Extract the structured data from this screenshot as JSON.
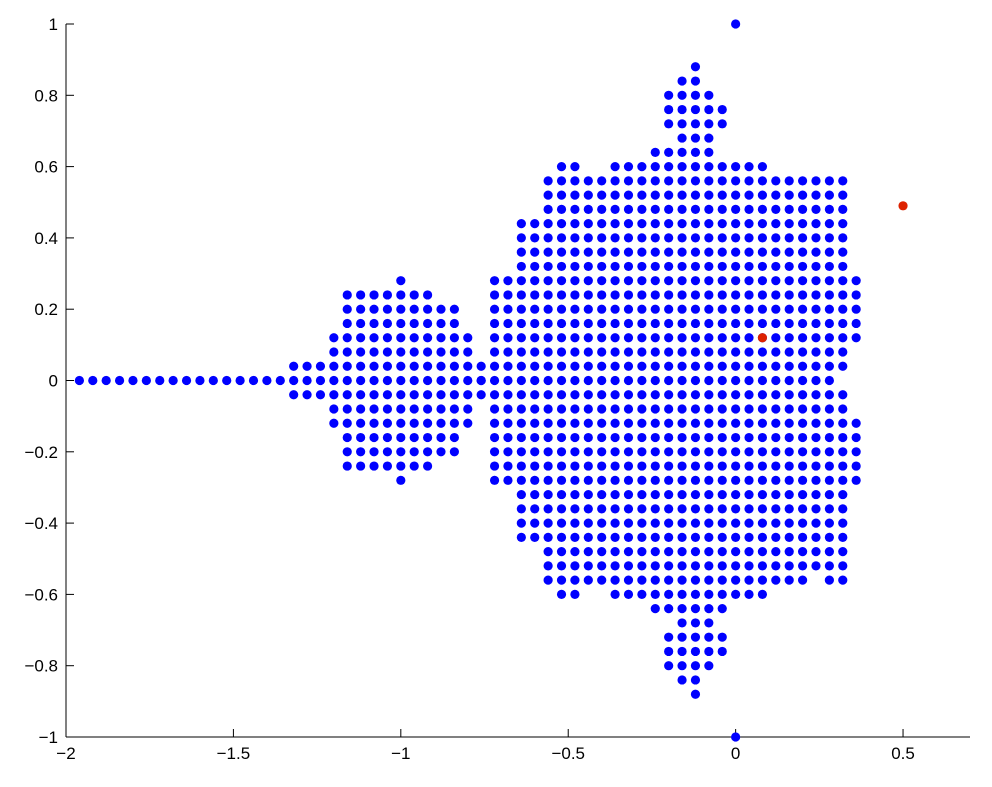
{
  "chart_data": {
    "type": "scatter",
    "title": "",
    "xlabel": "",
    "ylabel": "",
    "xlim": [
      -2,
      0.7
    ],
    "ylim": [
      -1,
      1
    ],
    "grid": false,
    "legend": "none",
    "x_ticks": [
      -2,
      -1.5,
      -1,
      -0.5,
      0,
      0.5
    ],
    "x_tick_labels": [
      "−2",
      "−1.5",
      "−1",
      "−0.5",
      "0",
      "0.5"
    ],
    "y_ticks": [
      -1,
      -0.8,
      -0.6,
      -0.4,
      -0.2,
      0,
      0.2,
      0.4,
      0.6,
      0.8,
      1
    ],
    "y_tick_labels": [
      "−1",
      "−0.8",
      "−0.6",
      "−0.4",
      "−0.2",
      "0",
      "0.2",
      "0.4",
      "0.6",
      "0.8",
      "1"
    ],
    "series": [
      {
        "color": "#0000ff",
        "grid_step": 0.04,
        "rows": [
          {
            "y": 0.88,
            "runs": [
              [
                -0.12,
                -0.12
              ]
            ]
          },
          {
            "y": 0.84,
            "runs": [
              [
                -0.16,
                -0.12
              ]
            ]
          },
          {
            "y": 0.8,
            "runs": [
              [
                -0.2,
                -0.08
              ]
            ]
          },
          {
            "y": 0.76,
            "runs": [
              [
                -0.2,
                -0.04
              ]
            ]
          },
          {
            "y": 0.72,
            "runs": [
              [
                -0.2,
                -0.04
              ]
            ]
          },
          {
            "y": 0.68,
            "runs": [
              [
                -0.16,
                -0.08
              ]
            ]
          },
          {
            "y": 0.64,
            "runs": [
              [
                -0.24,
                -0.08
              ]
            ]
          },
          {
            "y": 0.6,
            "runs": [
              [
                -0.52,
                -0.48
              ],
              [
                -0.36,
                0.08
              ]
            ]
          },
          {
            "y": 0.56,
            "runs": [
              [
                -0.56,
                0.24
              ],
              [
                0.28,
                0.32
              ]
            ]
          },
          {
            "y": 0.52,
            "runs": [
              [
                -0.56,
                0.32
              ]
            ]
          },
          {
            "y": 0.48,
            "runs": [
              [
                -0.56,
                0.32
              ]
            ]
          },
          {
            "y": 0.44,
            "runs": [
              [
                -0.64,
                0.32
              ]
            ]
          },
          {
            "y": 0.4,
            "runs": [
              [
                -0.64,
                0.32
              ]
            ]
          },
          {
            "y": 0.36,
            "runs": [
              [
                -0.64,
                0.32
              ]
            ]
          },
          {
            "y": 0.32,
            "runs": [
              [
                -0.64,
                0.32
              ]
            ]
          },
          {
            "y": 0.28,
            "runs": [
              [
                -1.0,
                -1.0
              ],
              [
                -0.72,
                0.36
              ]
            ]
          },
          {
            "y": 0.24,
            "runs": [
              [
                -1.16,
                -0.92
              ],
              [
                -0.72,
                0.36
              ]
            ]
          },
          {
            "y": 0.2,
            "runs": [
              [
                -1.16,
                -0.84
              ],
              [
                -0.72,
                0.36
              ]
            ]
          },
          {
            "y": 0.16,
            "runs": [
              [
                -1.16,
                -0.84
              ],
              [
                -0.72,
                0.36
              ]
            ]
          },
          {
            "y": 0.12,
            "runs": [
              [
                -1.2,
                -0.8
              ],
              [
                -0.72,
                0.36
              ]
            ]
          },
          {
            "y": 0.08,
            "runs": [
              [
                -1.2,
                -0.8
              ],
              [
                -0.72,
                0.32
              ]
            ]
          },
          {
            "y": 0.04,
            "runs": [
              [
                -1.32,
                -0.76
              ],
              [
                -0.72,
                0.32
              ]
            ]
          },
          {
            "y": 0.0,
            "runs": [
              [
                -1.96,
                -0.76
              ],
              [
                -0.76,
                0.28
              ]
            ]
          },
          {
            "y": -0.04,
            "runs": [
              [
                -1.32,
                -0.76
              ],
              [
                -0.72,
                0.32
              ]
            ]
          },
          {
            "y": -0.08,
            "runs": [
              [
                -1.2,
                -0.8
              ],
              [
                -0.72,
                0.32
              ]
            ]
          },
          {
            "y": -0.12,
            "runs": [
              [
                -1.2,
                -0.8
              ],
              [
                -0.72,
                0.36
              ]
            ]
          },
          {
            "y": -0.16,
            "runs": [
              [
                -1.16,
                -0.84
              ],
              [
                -0.72,
                0.36
              ]
            ]
          },
          {
            "y": -0.2,
            "runs": [
              [
                -1.16,
                -0.84
              ],
              [
                -0.72,
                0.36
              ]
            ]
          },
          {
            "y": -0.24,
            "runs": [
              [
                -1.16,
                -0.92
              ],
              [
                -0.72,
                0.36
              ]
            ]
          },
          {
            "y": -0.28,
            "runs": [
              [
                -1.0,
                -1.0
              ],
              [
                -0.72,
                0.36
              ]
            ]
          },
          {
            "y": -0.32,
            "runs": [
              [
                -0.64,
                0.32
              ]
            ]
          },
          {
            "y": -0.36,
            "runs": [
              [
                -0.64,
                0.32
              ]
            ]
          },
          {
            "y": -0.4,
            "runs": [
              [
                -0.64,
                0.32
              ]
            ]
          },
          {
            "y": -0.44,
            "runs": [
              [
                -0.64,
                0.32
              ]
            ]
          },
          {
            "y": -0.48,
            "runs": [
              [
                -0.56,
                0.32
              ]
            ]
          },
          {
            "y": -0.52,
            "runs": [
              [
                -0.56,
                0.24
              ],
              [
                0.28,
                0.32
              ]
            ]
          },
          {
            "y": -0.56,
            "runs": [
              [
                -0.56,
                0.2
              ],
              [
                0.28,
                0.32
              ]
            ]
          },
          {
            "y": -0.6,
            "runs": [
              [
                -0.52,
                -0.48
              ],
              [
                -0.36,
                0.08
              ]
            ]
          },
          {
            "y": -0.64,
            "runs": [
              [
                -0.24,
                -0.04
              ]
            ]
          },
          {
            "y": -0.68,
            "runs": [
              [
                -0.16,
                -0.08
              ]
            ]
          },
          {
            "y": -0.72,
            "runs": [
              [
                -0.2,
                -0.04
              ]
            ]
          },
          {
            "y": -0.76,
            "runs": [
              [
                -0.2,
                -0.04
              ]
            ]
          },
          {
            "y": -0.8,
            "runs": [
              [
                -0.2,
                -0.08
              ]
            ]
          },
          {
            "y": -0.84,
            "runs": [
              [
                -0.16,
                -0.12
              ]
            ]
          },
          {
            "y": -0.88,
            "runs": [
              [
                -0.12,
                -0.12
              ]
            ]
          }
        ],
        "extra_points": [
          [
            0.0,
            1.0
          ],
          [
            0.0,
            -1.0
          ]
        ]
      },
      {
        "color": "#dd2200",
        "points": [
          [
            0.08,
            0.12
          ],
          [
            0.5,
            0.49
          ]
        ]
      }
    ]
  }
}
